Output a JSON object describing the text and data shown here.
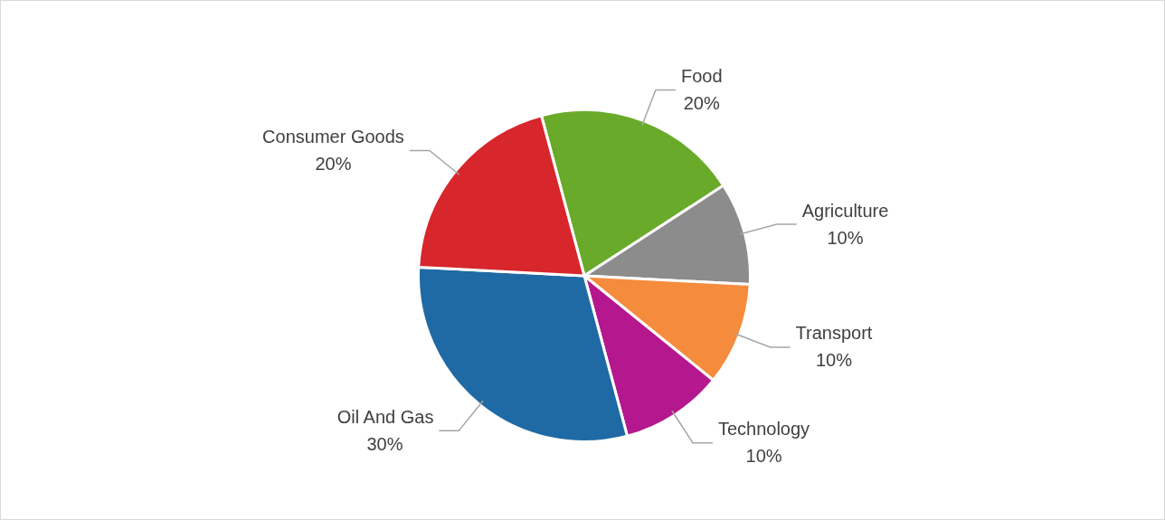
{
  "chart_data": {
    "type": "pie",
    "categories": [
      "Food",
      "Agriculture",
      "Transport",
      "Technology",
      "Oil And Gas",
      "Consumer Goods"
    ],
    "values": [
      20,
      10,
      10,
      10,
      30,
      20
    ],
    "value_labels": [
      "20%",
      "10%",
      "10%",
      "10%",
      "30%",
      "20%"
    ],
    "colors": [
      "#6aaa2a",
      "#8c8c8c",
      "#f58b3c",
      "#b5178e",
      "#1f6aa5",
      "#d8272c"
    ],
    "legend": false
  }
}
